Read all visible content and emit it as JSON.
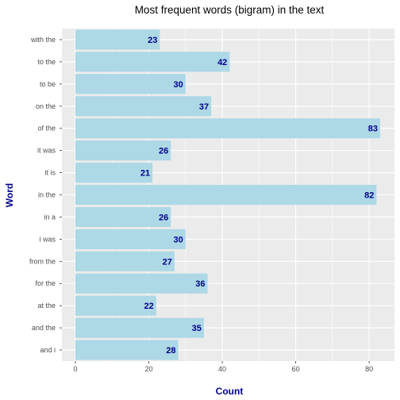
{
  "chart_data": {
    "type": "bar",
    "orientation": "horizontal",
    "title": "Most frequent words (bigram) in the text",
    "xlabel": "Count",
    "ylabel": "Word",
    "categories": [
      "with the",
      "to the",
      "to be",
      "on the",
      "of the",
      "it was",
      "it is",
      "in the",
      "in a",
      "i was",
      "from the",
      "for the",
      "at the",
      "and the",
      "and i"
    ],
    "values": [
      23,
      42,
      30,
      37,
      83,
      26,
      21,
      82,
      26,
      30,
      27,
      36,
      22,
      35,
      28
    ],
    "xlim": [
      0,
      86
    ],
    "xticks": [
      0,
      20,
      40,
      60,
      80
    ],
    "grid": true,
    "legend": "none",
    "colors": {
      "bar": "#add8e6",
      "panel": "#ebebeb",
      "grid": "#ffffff",
      "label": "#00008b"
    }
  }
}
